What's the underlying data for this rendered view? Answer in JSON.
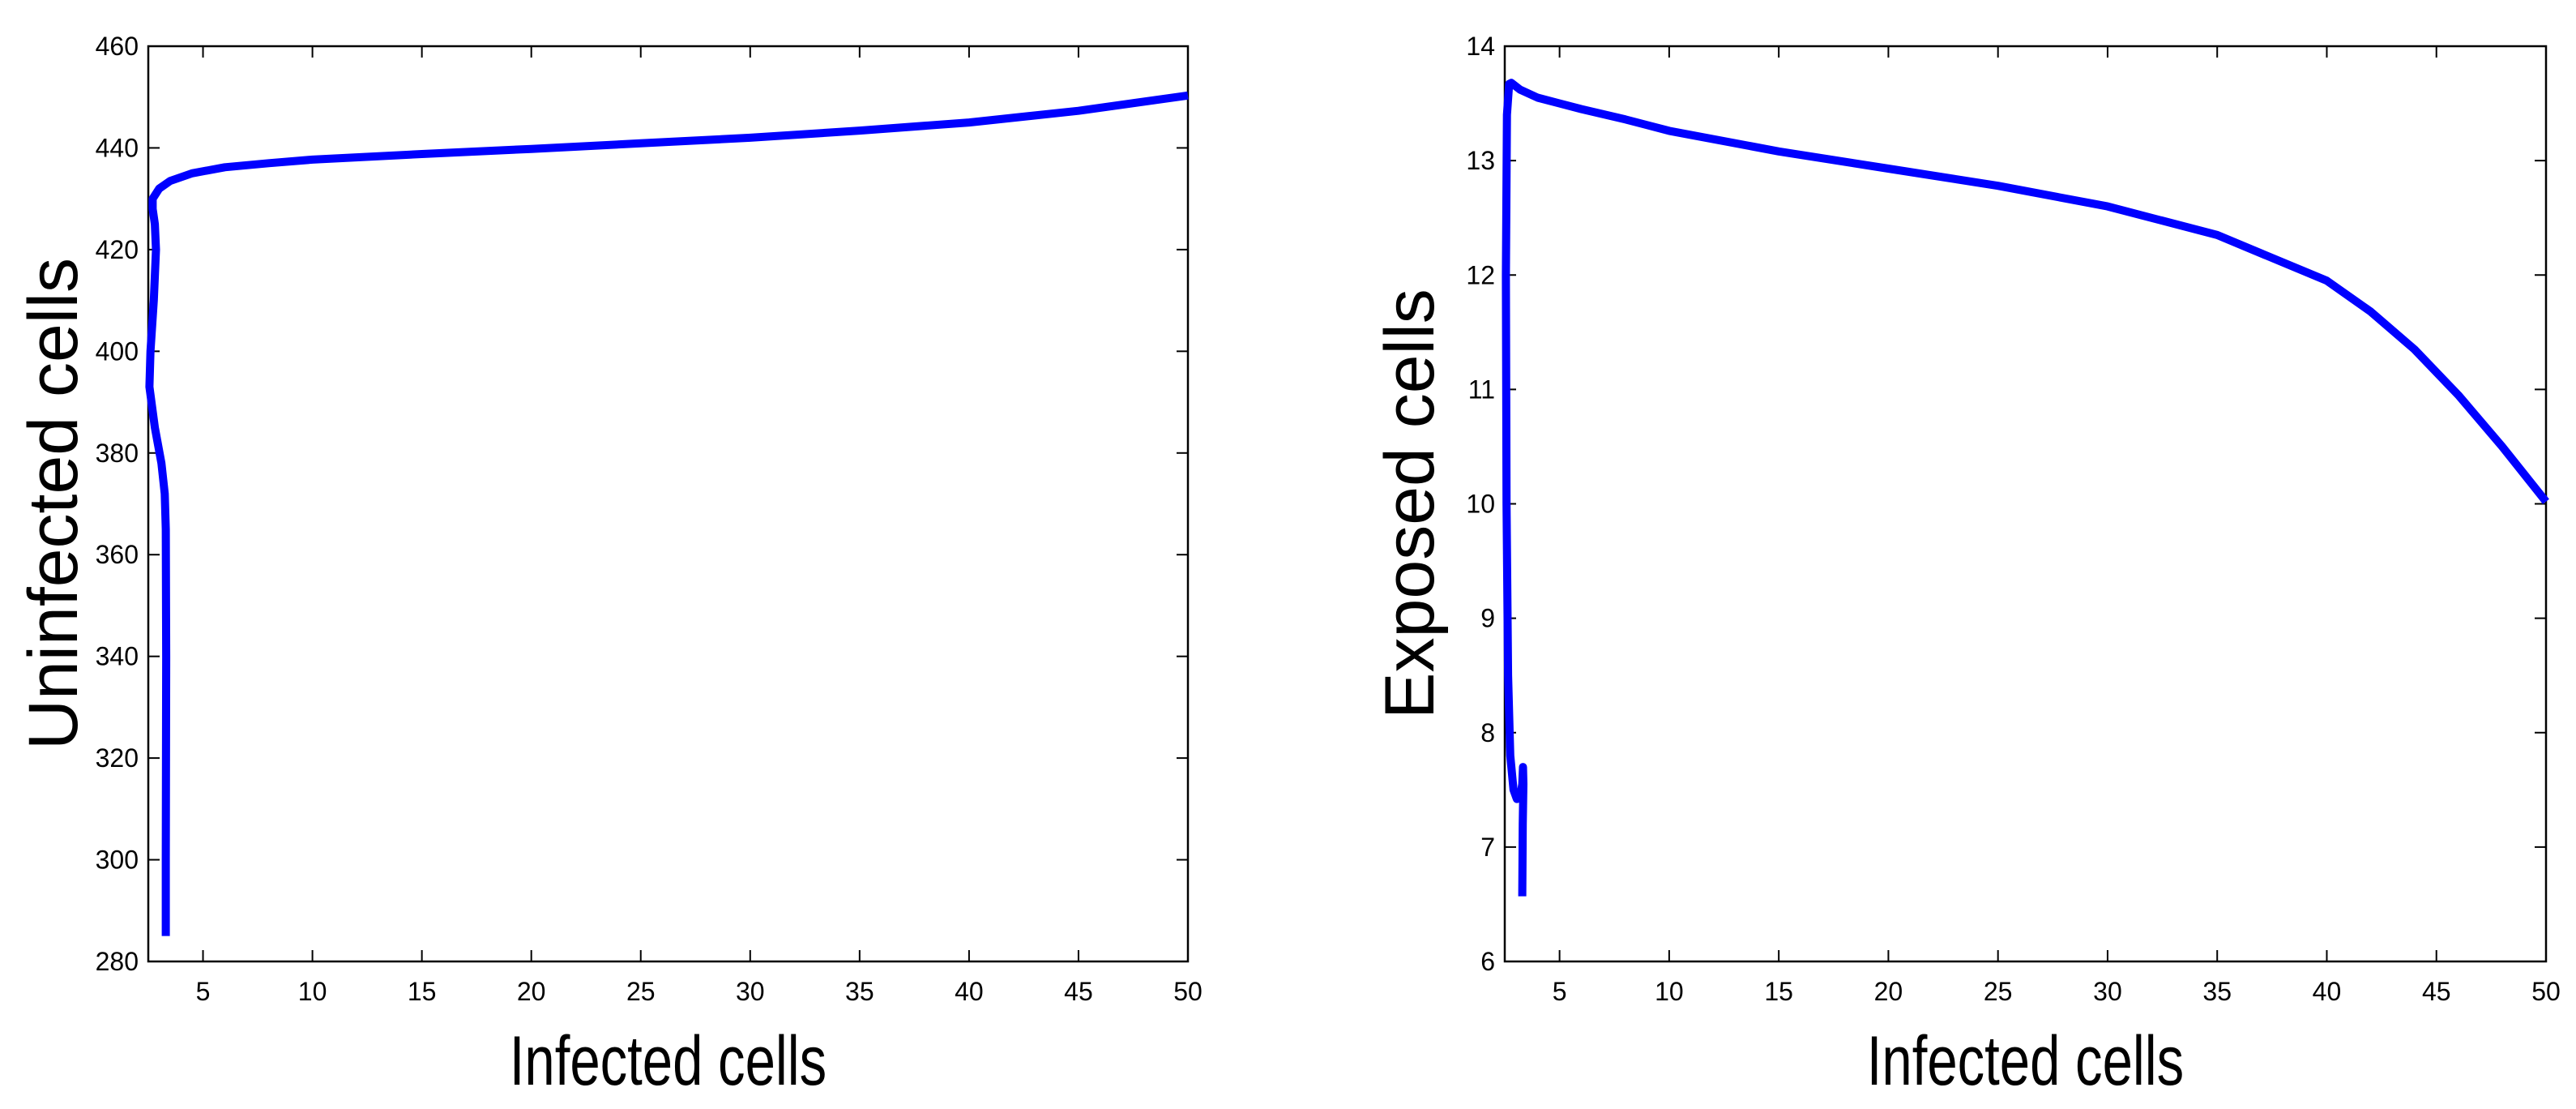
{
  "chart_data": [
    {
      "type": "line",
      "title": "",
      "xlabel": "Infected cells",
      "ylabel": "Uninfected cells",
      "xlim": [
        2.5,
        50
      ],
      "ylim": [
        280,
        460
      ],
      "xticks": [
        5,
        10,
        15,
        20,
        25,
        30,
        35,
        40,
        45,
        50
      ],
      "yticks": [
        280,
        300,
        320,
        340,
        360,
        380,
        400,
        420,
        440,
        460
      ],
      "grid": false,
      "line_color": "#0000ff",
      "series": [
        {
          "x": [
            3.3,
            3.3,
            3.32,
            3.3,
            3.25,
            3.1,
            2.8,
            2.55,
            2.6,
            2.75,
            2.85,
            2.8,
            2.7,
            2.7,
            3.0,
            3.5,
            4.5,
            6.0,
            8.0,
            10.0,
            15.0,
            20.0,
            25.0,
            30.0,
            35.0,
            40.0,
            45.0,
            50.0
          ],
          "y": [
            285,
            300,
            340,
            365,
            372,
            378,
            385,
            393,
            400,
            410,
            420,
            425,
            428,
            430,
            432,
            433.5,
            435,
            436.2,
            437,
            437.7,
            438.8,
            439.8,
            440.9,
            442,
            443.4,
            445,
            447.3,
            450.3
          ]
        }
      ]
    },
    {
      "type": "line",
      "title": "",
      "xlabel": "Infected cells",
      "ylabel": "Exposed cells",
      "xlim": [
        2.5,
        50
      ],
      "ylim": [
        6,
        14
      ],
      "xticks": [
        5,
        10,
        15,
        20,
        25,
        30,
        35,
        40,
        45,
        50
      ],
      "yticks": [
        6,
        7,
        8,
        9,
        10,
        11,
        12,
        13,
        14
      ],
      "grid": false,
      "line_color": "#0000ff",
      "series": [
        {
          "x": [
            3.3,
            3.32,
            3.35,
            3.33,
            3.3,
            3.2,
            3.05,
            2.9,
            2.75,
            2.65,
            2.58,
            2.55,
            2.6,
            2.7,
            2.8,
            3.2,
            4.0,
            5.0,
            6.0,
            8.0,
            10.0,
            15.0,
            20.0,
            25.0,
            30.0,
            35.0,
            40.0,
            42.0,
            44.0,
            46.0,
            48.0,
            50.0
          ],
          "y": [
            6.57,
            7.2,
            7.55,
            7.7,
            7.55,
            7.43,
            7.42,
            7.5,
            7.8,
            8.5,
            10.0,
            12.0,
            13.4,
            13.67,
            13.68,
            13.62,
            13.55,
            13.5,
            13.45,
            13.36,
            13.26,
            13.08,
            12.93,
            12.78,
            12.6,
            12.35,
            11.95,
            11.68,
            11.35,
            10.95,
            10.5,
            10.02
          ]
        }
      ]
    }
  ]
}
